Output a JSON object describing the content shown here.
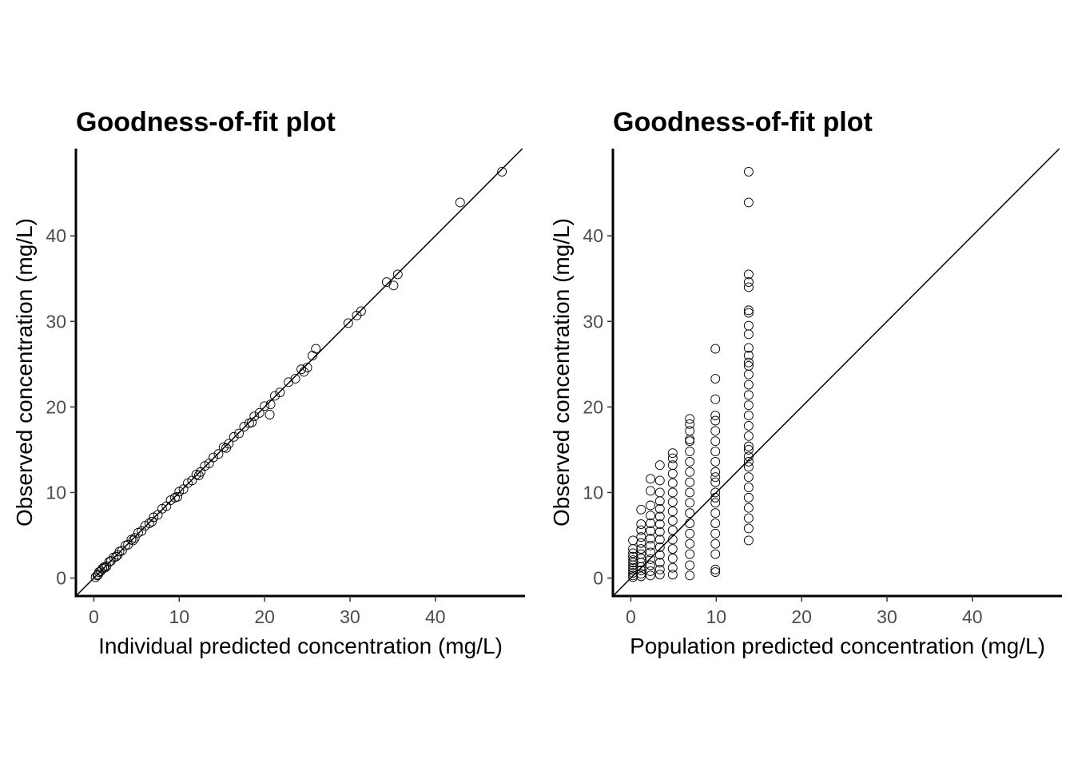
{
  "chart_data": [
    {
      "type": "scatter",
      "title": "Goodness-of-fit plot",
      "xlabel": "Individual predicted concentration (mg/L)",
      "ylabel": "Observed concentration (mg/L)",
      "xlim": [
        -2.1,
        50.5
      ],
      "ylim": [
        -2.1,
        50.2
      ],
      "xticks": [
        0,
        10,
        20,
        30,
        40
      ],
      "yticks": [
        0,
        10,
        20,
        30,
        40
      ],
      "reference_line": "identity",
      "grid": false,
      "series": [
        {
          "x": [
            0.2,
            0.4,
            0.6,
            0.8,
            1.0,
            1.2,
            1.5,
            1.8,
            2.0,
            2.3,
            2.6,
            3.0,
            3.3,
            3.7,
            4.0,
            4.4,
            4.8,
            5.2,
            5.6,
            6.0,
            6.5,
            7.0,
            7.5,
            8.0,
            8.5,
            9.0,
            9.5,
            10.0,
            10.5,
            11.0,
            11.5,
            12.0,
            12.5,
            13.0,
            13.5,
            14.0,
            14.6,
            15.2,
            15.8,
            16.4,
            17.0,
            17.6,
            18.2,
            18.8,
            19.4,
            20.0,
            20.6,
            21.2,
            21.8,
            22.8,
            23.6,
            24.3,
            25.0,
            25.6,
            26.0,
            29.8,
            30.8,
            31.3,
            34.3,
            35.1,
            35.6,
            42.9,
            47.8,
            0.5,
            1.3,
            2.8,
            4.6,
            6.8,
            9.8,
            12.3,
            15.5,
            18.5,
            20.7,
            24.6
          ],
          "y": [
            0.1,
            0.3,
            0.7,
            0.8,
            1.1,
            1.3,
            1.4,
            1.9,
            2.0,
            2.4,
            2.5,
            3.1,
            3.2,
            3.8,
            3.9,
            4.5,
            4.7,
            5.3,
            5.5,
            6.1,
            6.4,
            7.1,
            7.4,
            8.1,
            8.4,
            9.1,
            9.4,
            10.1,
            10.4,
            11.1,
            11.4,
            12.1,
            12.4,
            13.1,
            13.4,
            14.1,
            14.5,
            15.3,
            15.7,
            16.5,
            16.9,
            17.7,
            18.1,
            18.9,
            19.3,
            20.1,
            19.1,
            21.3,
            21.7,
            22.9,
            23.3,
            24.4,
            24.6,
            26.0,
            26.8,
            29.8,
            30.7,
            31.2,
            34.6,
            34.2,
            35.5,
            43.9,
            47.5,
            0.4,
            1.2,
            2.7,
            4.4,
            6.6,
            9.5,
            12.0,
            15.2,
            18.2,
            20.3,
            24.1
          ]
        }
      ]
    },
    {
      "type": "scatter",
      "title": "Goodness-of-fit plot",
      "xlabel": "Population predicted concentration (mg/L)",
      "ylabel": "Observed concentration (mg/L)",
      "xlim": [
        -2.1,
        50.5
      ],
      "ylim": [
        -2.1,
        50.2
      ],
      "xticks": [
        0,
        10,
        20,
        30,
        40
      ],
      "yticks": [
        0,
        10,
        20,
        30,
        40
      ],
      "reference_line": "identity",
      "grid": false,
      "series": [
        {
          "x": [
            0.25,
            0.25,
            0.25,
            0.25,
            0.25,
            0.25,
            0.25,
            0.25,
            0.25,
            0.25,
            0.25,
            0.25,
            1.2,
            1.2,
            1.2,
            1.2,
            1.2,
            1.2,
            1.2,
            1.2,
            1.2,
            1.2,
            1.2,
            1.2,
            1.2,
            2.3,
            2.3,
            2.3,
            2.3,
            2.3,
            2.3,
            2.3,
            2.3,
            2.3,
            2.3,
            2.3,
            2.3,
            2.3,
            3.4,
            3.4,
            3.4,
            3.4,
            3.4,
            3.4,
            3.4,
            3.4,
            3.4,
            3.4,
            3.4,
            3.4,
            3.4,
            3.4,
            4.9,
            4.9,
            4.9,
            4.9,
            4.9,
            4.9,
            4.9,
            4.9,
            4.9,
            4.9,
            4.9,
            4.9,
            4.9,
            4.9,
            4.9,
            6.9,
            6.9,
            6.9,
            6.9,
            6.9,
            6.9,
            6.9,
            6.9,
            6.9,
            6.9,
            6.9,
            6.9,
            6.9,
            6.9,
            6.9,
            6.9,
            6.9,
            6.9,
            9.9,
            9.9,
            9.9,
            9.9,
            9.9,
            9.9,
            9.9,
            9.9,
            9.9,
            9.9,
            9.9,
            9.9,
            9.9,
            9.9,
            9.9,
            9.9,
            9.9,
            9.9,
            9.9,
            9.9,
            9.9,
            9.9,
            13.8,
            13.8,
            13.8,
            13.8,
            13.8,
            13.8,
            13.8,
            13.8,
            13.8,
            13.8,
            13.8,
            13.8,
            13.8,
            13.8,
            13.8,
            13.8,
            13.8,
            13.8,
            13.8,
            13.8,
            13.8,
            13.8,
            13.8,
            13.8,
            13.8,
            13.8,
            13.8,
            13.8,
            13.8,
            13.8,
            13.8,
            13.8
          ],
          "y": [
            0.1,
            0.3,
            0.6,
            0.9,
            1.2,
            1.5,
            1.8,
            2.1,
            2.5,
            2.9,
            3.4,
            4.4,
            0.2,
            0.5,
            0.9,
            1.3,
            1.8,
            2.3,
            2.8,
            3.4,
            4.1,
            4.8,
            5.6,
            6.3,
            8.0,
            0.3,
            0.8,
            1.5,
            2.2,
            3.0,
            3.8,
            4.6,
            5.5,
            6.4,
            7.3,
            8.5,
            10.2,
            11.6,
            0.4,
            1.0,
            1.8,
            2.7,
            3.6,
            4.5,
            5.4,
            6.3,
            7.2,
            8.1,
            9.0,
            10.0,
            11.4,
            13.2,
            0.4,
            1.2,
            2.3,
            3.4,
            4.5,
            5.6,
            6.7,
            7.8,
            8.9,
            10.0,
            11.1,
            12.2,
            13.2,
            14.0,
            14.6,
            0.3,
            1.5,
            2.8,
            4.0,
            5.2,
            6.4,
            7.6,
            8.8,
            10.0,
            11.2,
            12.4,
            13.6,
            14.8,
            16.0,
            17.2,
            18.0,
            18.6,
            16.2,
            0.7,
            1.0,
            2.8,
            4.0,
            5.2,
            6.4,
            7.6,
            8.8,
            10.0,
            11.2,
            12.4,
            13.6,
            14.8,
            16.0,
            17.2,
            18.4,
            19.0,
            20.9,
            23.3,
            26.8,
            9.4,
            11.8,
            4.4,
            5.8,
            7.0,
            8.2,
            9.4,
            10.6,
            11.8,
            13.0,
            14.2,
            15.4,
            16.6,
            17.8,
            19.0,
            20.2,
            21.4,
            22.6,
            23.8,
            24.8,
            25.2,
            26.0,
            26.9,
            28.5,
            29.5,
            31.0,
            31.3,
            34.0,
            34.6,
            35.5,
            43.9,
            47.5,
            15.0,
            13.6
          ]
        }
      ]
    }
  ]
}
